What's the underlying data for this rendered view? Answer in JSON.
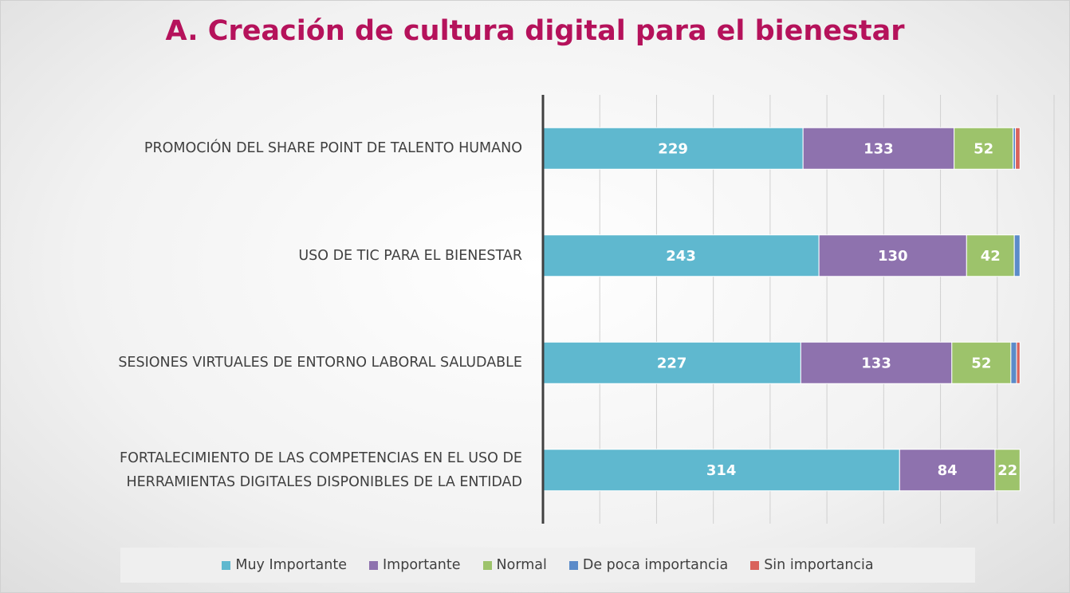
{
  "chart_data": {
    "type": "stacked_barh",
    "title": "A. Creación de cultura digital para el bienestar",
    "categories": [
      "PROMOCIÓN DEL SHARE POINT DE TALENTO HUMANO",
      "USO DE TIC PARA EL BIENESTAR",
      "SESIONES VIRTUALES DE ENTORNO LABORAL SALUDABLE",
      "FORTALECIMIENTO DE LAS COMPETENCIAS EN EL USO DE\nHERRAMIENTAS DIGITALES DISPONIBLES DE LA ENTIDAD"
    ],
    "series": [
      {
        "name": "Muy Importante",
        "color": "#5fb8cf",
        "values": [
          229,
          243,
          227,
          314
        ]
      },
      {
        "name": "Importante",
        "color": "#8e72ae",
        "values": [
          133,
          130,
          133,
          84
        ]
      },
      {
        "name": "Normal",
        "color": "#9dc36b",
        "values": [
          52,
          42,
          52,
          22
        ]
      },
      {
        "name": "De poca importancia",
        "color": "#5b8bc9",
        "values": [
          2,
          5,
          5,
          0
        ]
      },
      {
        "name": "Sin importancia",
        "color": "#d9625b",
        "values": [
          4,
          0,
          3,
          0
        ]
      }
    ],
    "xlim": [
      0,
      450
    ],
    "xticks": [
      0,
      50,
      100,
      150,
      200,
      250,
      300,
      350,
      400,
      450
    ],
    "grid": true,
    "legend": "bottom"
  }
}
